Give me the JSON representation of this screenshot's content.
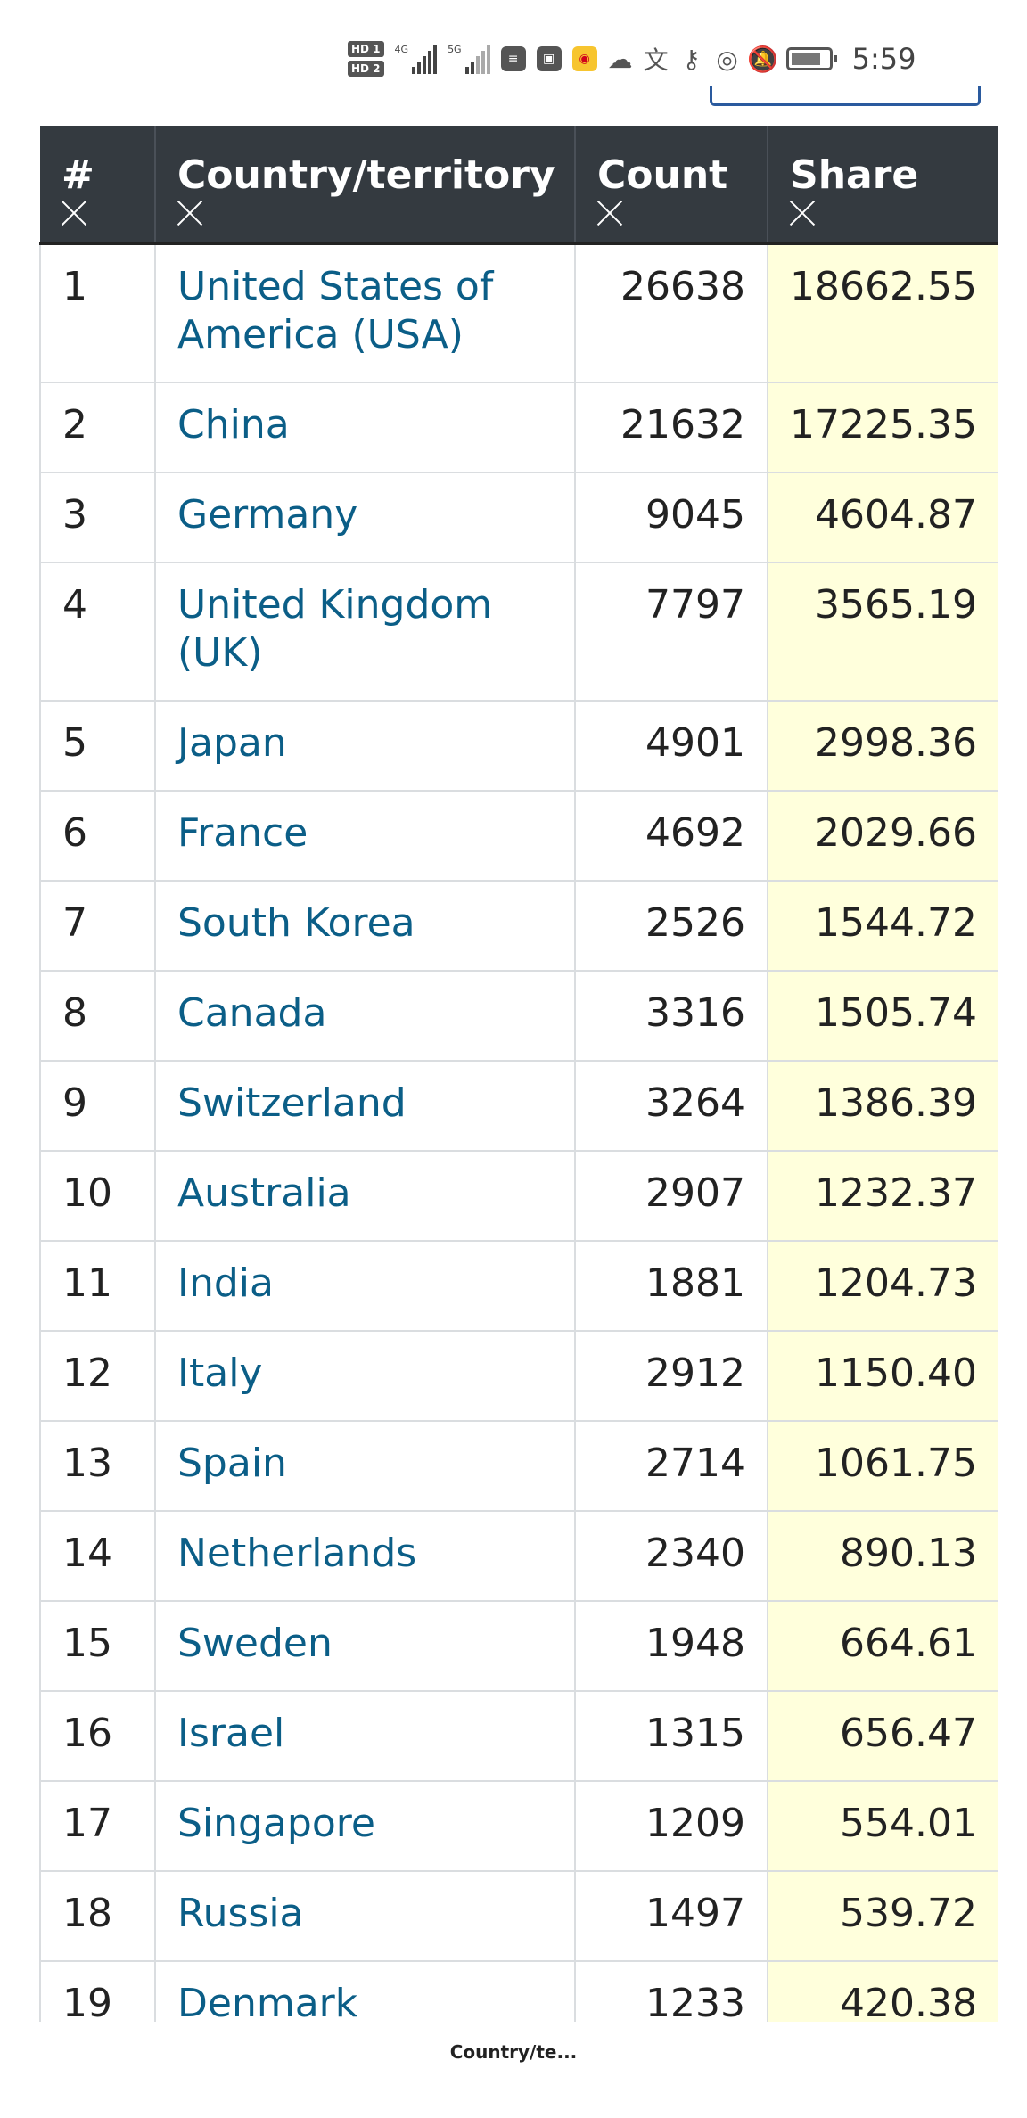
{
  "status_bar": {
    "sim1_label": "HD 1",
    "sim2_label": "HD 2",
    "sim1_network": "4G",
    "sim2_network": "5G",
    "time": "5:59"
  },
  "table": {
    "headers": {
      "rank": "#",
      "country": "Country/territory",
      "count": "Count",
      "share": "Share"
    },
    "rows": [
      {
        "rank": "1",
        "country": "United States of America (USA)",
        "count": "26638",
        "share": "18662.55"
      },
      {
        "rank": "2",
        "country": "China",
        "count": "21632",
        "share": "17225.35"
      },
      {
        "rank": "3",
        "country": "Germany",
        "count": "9045",
        "share": "4604.87"
      },
      {
        "rank": "4",
        "country": "United Kingdom (UK)",
        "count": "7797",
        "share": "3565.19"
      },
      {
        "rank": "5",
        "country": "Japan",
        "count": "4901",
        "share": "2998.36"
      },
      {
        "rank": "6",
        "country": "France",
        "count": "4692",
        "share": "2029.66"
      },
      {
        "rank": "7",
        "country": "South Korea",
        "count": "2526",
        "share": "1544.72"
      },
      {
        "rank": "8",
        "country": "Canada",
        "count": "3316",
        "share": "1505.74"
      },
      {
        "rank": "9",
        "country": "Switzerland",
        "count": "3264",
        "share": "1386.39"
      },
      {
        "rank": "10",
        "country": "Australia",
        "count": "2907",
        "share": "1232.37"
      },
      {
        "rank": "11",
        "country": "India",
        "count": "1881",
        "share": "1204.73"
      },
      {
        "rank": "12",
        "country": "Italy",
        "count": "2912",
        "share": "1150.40"
      },
      {
        "rank": "13",
        "country": "Spain",
        "count": "2714",
        "share": "1061.75"
      },
      {
        "rank": "14",
        "country": "Netherlands",
        "count": "2340",
        "share": "890.13"
      },
      {
        "rank": "15",
        "country": "Sweden",
        "count": "1948",
        "share": "664.61"
      },
      {
        "rank": "16",
        "country": "Israel",
        "count": "1315",
        "share": "656.47"
      },
      {
        "rank": "17",
        "country": "Singapore",
        "count": "1209",
        "share": "554.01"
      },
      {
        "rank": "18",
        "country": "Russia",
        "count": "1497",
        "share": "539.72"
      },
      {
        "rank": "19",
        "country": "Denmark",
        "count": "1233",
        "share": "420.38"
      }
    ]
  },
  "footer": {
    "tab_label": "Country/te..."
  }
}
